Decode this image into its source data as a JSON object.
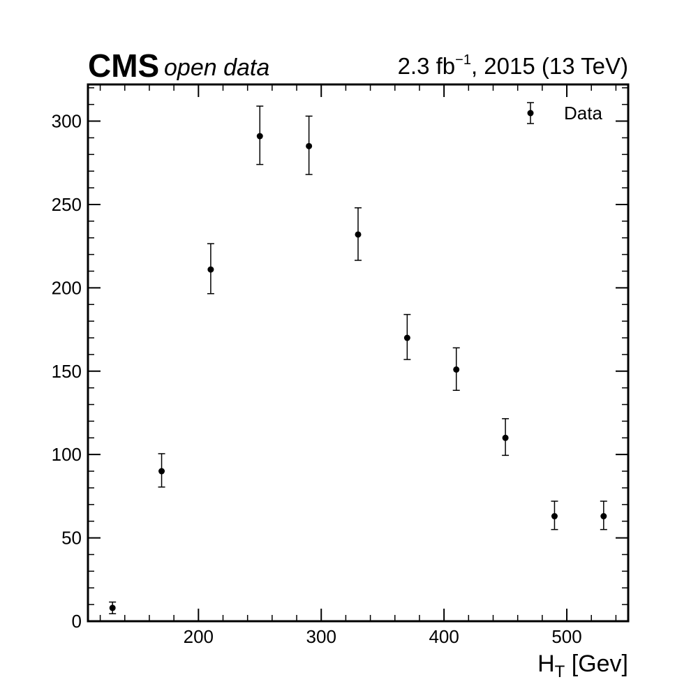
{
  "header": {
    "experiment": "CMS",
    "experiment_sub": "open data",
    "luminosity": "2.3 fb",
    "luminosity_exponent": "−1",
    "run_info": ", 2015 (13 TeV)"
  },
  "chart_data": {
    "type": "scatter",
    "xlabel_main": "H",
    "xlabel_sub": "T",
    "xlabel_rest": " [Gev]",
    "ylabel": "",
    "xlim": [
      110,
      550
    ],
    "ylim": [
      0,
      322
    ],
    "x_ticks": [
      200,
      300,
      400,
      500
    ],
    "y_ticks": [
      0,
      50,
      100,
      150,
      200,
      250,
      300
    ],
    "legend": {
      "position": "top-right",
      "entries": [
        "Data"
      ]
    },
    "series": [
      {
        "name": "Data",
        "color": "#000000",
        "x": [
          130,
          170,
          210,
          250,
          290,
          330,
          370,
          410,
          450,
          490,
          530
        ],
        "y": [
          8,
          90,
          211,
          291,
          285,
          232,
          170,
          151,
          110,
          63,
          63
        ],
        "yerr_low": [
          3.5,
          9.5,
          14.5,
          17,
          17,
          15.5,
          13,
          12.5,
          10.5,
          8,
          8
        ],
        "yerr_high": [
          3.5,
          10.5,
          15.5,
          18,
          18,
          16,
          14,
          13,
          11.5,
          9,
          9
        ]
      }
    ]
  }
}
